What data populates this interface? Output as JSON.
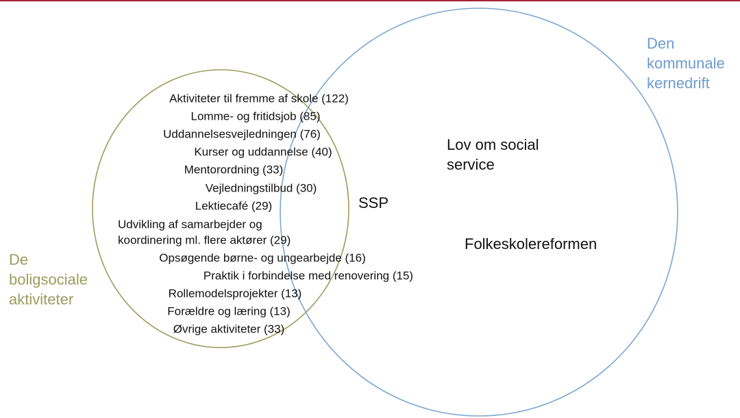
{
  "left_set": {
    "label": [
      "De",
      "boligsociale",
      "aktiviteter"
    ],
    "items": [
      [
        "Aktiviteter til fremme af skole (122)"
      ],
      [
        "Lomme- og fritidsjob (85)"
      ],
      [
        "Uddannelsesvejledningen (76)"
      ],
      [
        "Kurser og uddannelse (40)"
      ],
      [
        "Mentorordning (33)"
      ],
      [
        "Vejledningstilbud (30)"
      ],
      [
        "Lektiecafé (29)"
      ],
      [
        "Udvikling af samarbejder og",
        "koordinering ml. flere aktører (29)"
      ],
      [
        "Opsøgende børne- og ungearbejde (16)"
      ],
      [
        "Praktik i forbindelse med renovering (15)"
      ],
      [
        "Rollemodelsprojekter (13)"
      ],
      [
        "Forældre og læring (13)"
      ],
      [
        "Øvrige aktiviteter (33)"
      ]
    ]
  },
  "overlap": {
    "items": [
      [
        "SSP"
      ]
    ]
  },
  "right_set": {
    "label": [
      "Den",
      "kommunale",
      "kernedrift"
    ],
    "items": [
      [
        "Lov om social",
        "service"
      ],
      [
        "Folkeskolereformen"
      ]
    ]
  }
}
